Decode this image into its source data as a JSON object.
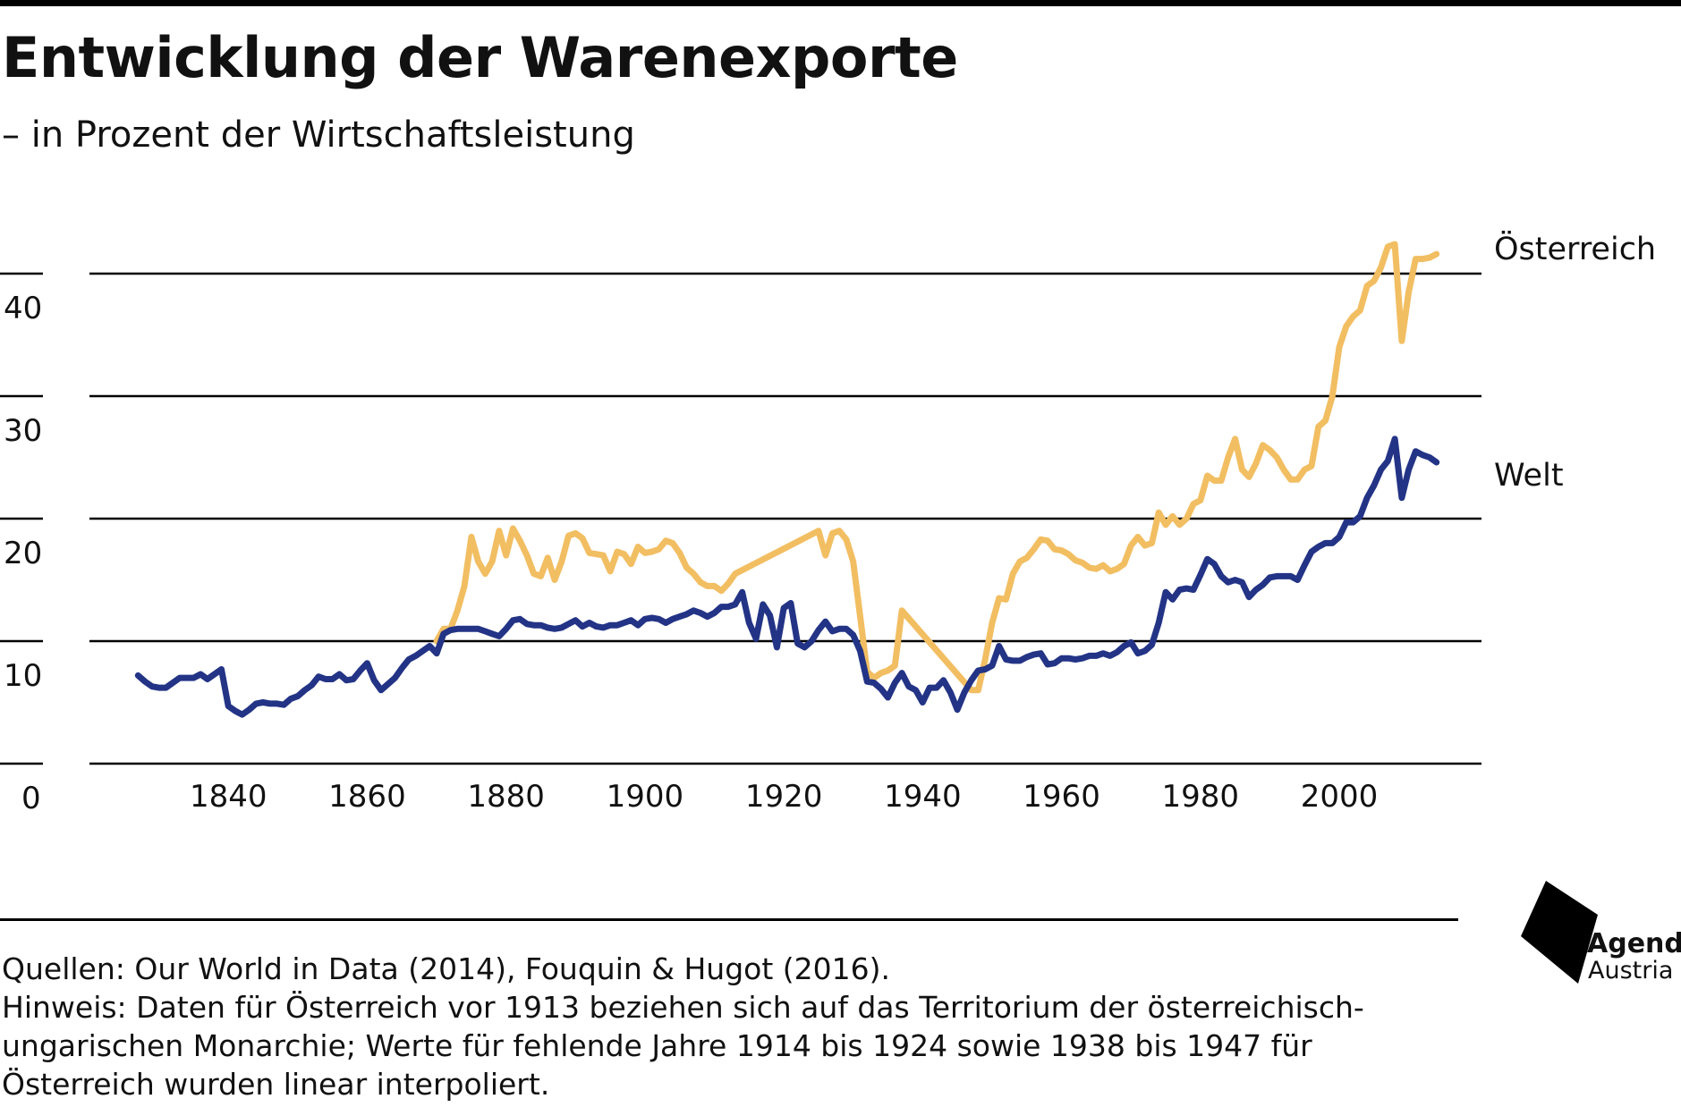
{
  "title": "Entwicklung der Warenexporte",
  "subtitle": "– in Prozent der Wirtschaftsleistung",
  "notes": {
    "sources": "Quellen: Our World in Data (2014), Fouquin & Hugot (2016).",
    "hint": "Hinweis: Daten für Österreich vor 1913 beziehen sich auf das Territorium der österreichisch-\nungarischen Monarchie; Werte für fehlende Jahre 1914 bis 1924 sowie 1938 bis 1947 für\nÖsterreich wurden linear interpoliert."
  },
  "logo": {
    "line1": "Agenda",
    "line2": "Austria"
  },
  "chart_data": {
    "type": "line",
    "ylim": [
      0,
      40
    ],
    "y_ticks": [
      0,
      10,
      20,
      30,
      40
    ],
    "x_range": [
      1820,
      2021
    ],
    "x_ticks": [
      1840,
      1860,
      1880,
      1900,
      1920,
      1940,
      1960,
      1980,
      2000
    ],
    "grid": true,
    "series": [
      {
        "name": "Österreich",
        "color": "#f2be62",
        "points": [
          [
            1870,
            10
          ],
          [
            1871,
            11
          ],
          [
            1872,
            11
          ],
          [
            1873,
            12.5
          ],
          [
            1874,
            14.5
          ],
          [
            1875,
            18.5
          ],
          [
            1876,
            16.5
          ],
          [
            1877,
            15.5
          ],
          [
            1878,
            16.5
          ],
          [
            1879,
            19
          ],
          [
            1880,
            17
          ],
          [
            1881,
            19.2
          ],
          [
            1882,
            18.2
          ],
          [
            1883,
            17
          ],
          [
            1884,
            15.5
          ],
          [
            1885,
            15.3
          ],
          [
            1886,
            16.8
          ],
          [
            1887,
            15
          ],
          [
            1888,
            16.5
          ],
          [
            1889,
            18.6
          ],
          [
            1890,
            18.8
          ],
          [
            1891,
            18.4
          ],
          [
            1892,
            17.2
          ],
          [
            1893,
            17.1
          ],
          [
            1894,
            17
          ],
          [
            1895,
            15.7
          ],
          [
            1896,
            17.3
          ],
          [
            1897,
            17.1
          ],
          [
            1898,
            16.3
          ],
          [
            1899,
            17.7
          ],
          [
            1900,
            17.2
          ],
          [
            1901,
            17.3
          ],
          [
            1902,
            17.5
          ],
          [
            1903,
            18.2
          ],
          [
            1904,
            18
          ],
          [
            1905,
            17.2
          ],
          [
            1906,
            16
          ],
          [
            1907,
            15.5
          ],
          [
            1908,
            14.8
          ],
          [
            1909,
            14.5
          ],
          [
            1910,
            14.5
          ],
          [
            1911,
            14.1
          ],
          [
            1912,
            14.7
          ],
          [
            1913,
            15.5
          ],
          [
            1925,
            19
          ],
          [
            1926,
            17
          ],
          [
            1927,
            18.8
          ],
          [
            1928,
            19
          ],
          [
            1929,
            18.3
          ],
          [
            1930,
            16.5
          ],
          [
            1931,
            12
          ],
          [
            1932,
            7.5
          ],
          [
            1933,
            7
          ],
          [
            1934,
            7.4
          ],
          [
            1935,
            7.6
          ],
          [
            1936,
            8
          ],
          [
            1937,
            12.5
          ],
          [
            1947,
            6
          ],
          [
            1948,
            6
          ],
          [
            1949,
            8.5
          ],
          [
            1950,
            11.5
          ],
          [
            1951,
            13.5
          ],
          [
            1952,
            13.4
          ],
          [
            1953,
            15.5
          ],
          [
            1954,
            16.5
          ],
          [
            1955,
            16.8
          ],
          [
            1956,
            17.5
          ],
          [
            1957,
            18.3
          ],
          [
            1958,
            18.2
          ],
          [
            1959,
            17.5
          ],
          [
            1960,
            17.4
          ],
          [
            1961,
            17.1
          ],
          [
            1962,
            16.6
          ],
          [
            1963,
            16.4
          ],
          [
            1964,
            16
          ],
          [
            1965,
            15.9
          ],
          [
            1966,
            16.2
          ],
          [
            1967,
            15.7
          ],
          [
            1968,
            15.9
          ],
          [
            1969,
            16.3
          ],
          [
            1970,
            17.8
          ],
          [
            1971,
            18.5
          ],
          [
            1972,
            17.8
          ],
          [
            1973,
            18
          ],
          [
            1974,
            20.5
          ],
          [
            1975,
            19.5
          ],
          [
            1976,
            20.2
          ],
          [
            1977,
            19.5
          ],
          [
            1978,
            20
          ],
          [
            1979,
            21.2
          ],
          [
            1980,
            21.5
          ],
          [
            1981,
            23.5
          ],
          [
            1982,
            23.1
          ],
          [
            1983,
            23.1
          ],
          [
            1984,
            25
          ],
          [
            1985,
            26.5
          ],
          [
            1986,
            24
          ],
          [
            1987,
            23.4
          ],
          [
            1988,
            24.5
          ],
          [
            1989,
            26
          ],
          [
            1990,
            25.6
          ],
          [
            1991,
            25
          ],
          [
            1992,
            24
          ],
          [
            1993,
            23.2
          ],
          [
            1994,
            23.2
          ],
          [
            1995,
            24
          ],
          [
            1996,
            24.3
          ],
          [
            1997,
            27.5
          ],
          [
            1998,
            28
          ],
          [
            1999,
            30
          ],
          [
            2000,
            34
          ],
          [
            2001,
            35.7
          ],
          [
            2002,
            36.5
          ],
          [
            2003,
            37
          ],
          [
            2004,
            39
          ],
          [
            2005,
            39.4
          ],
          [
            2006,
            40.5
          ],
          [
            2007,
            42.2
          ],
          [
            2008,
            42.4
          ],
          [
            2009,
            34.5
          ],
          [
            2010,
            38.5
          ],
          [
            2011,
            41.2
          ],
          [
            2012,
            41.2
          ],
          [
            2013,
            41.3
          ],
          [
            2014,
            41.6
          ]
        ]
      },
      {
        "name": "Welt",
        "color": "#233486",
        "points": [
          [
            1827,
            7.2
          ],
          [
            1828,
            6.7
          ],
          [
            1829,
            6.3
          ],
          [
            1830,
            6.2
          ],
          [
            1831,
            6.2
          ],
          [
            1832,
            6.6
          ],
          [
            1833,
            7
          ],
          [
            1834,
            7
          ],
          [
            1835,
            7
          ],
          [
            1836,
            7.3
          ],
          [
            1837,
            6.9
          ],
          [
            1838,
            7.3
          ],
          [
            1839,
            7.7
          ],
          [
            1840,
            4.7
          ],
          [
            1841,
            4.3
          ],
          [
            1842,
            4
          ],
          [
            1843,
            4.4
          ],
          [
            1844,
            4.9
          ],
          [
            1845,
            5
          ],
          [
            1846,
            4.9
          ],
          [
            1847,
            4.9
          ],
          [
            1848,
            4.8
          ],
          [
            1849,
            5.3
          ],
          [
            1850,
            5.5
          ],
          [
            1851,
            6
          ],
          [
            1852,
            6.4
          ],
          [
            1853,
            7.1
          ],
          [
            1854,
            6.9
          ],
          [
            1855,
            6.9
          ],
          [
            1856,
            7.3
          ],
          [
            1857,
            6.8
          ],
          [
            1858,
            6.9
          ],
          [
            1859,
            7.6
          ],
          [
            1860,
            8.2
          ],
          [
            1861,
            6.8
          ],
          [
            1862,
            6
          ],
          [
            1863,
            6.5
          ],
          [
            1864,
            7
          ],
          [
            1865,
            7.8
          ],
          [
            1866,
            8.5
          ],
          [
            1867,
            8.8
          ],
          [
            1868,
            9.2
          ],
          [
            1869,
            9.6
          ],
          [
            1870,
            9
          ],
          [
            1871,
            10.6
          ],
          [
            1872,
            10.9
          ],
          [
            1873,
            11
          ],
          [
            1874,
            11
          ],
          [
            1875,
            11
          ],
          [
            1876,
            11
          ],
          [
            1877,
            10.8
          ],
          [
            1878,
            10.6
          ],
          [
            1879,
            10.4
          ],
          [
            1880,
            11
          ],
          [
            1881,
            11.7
          ],
          [
            1882,
            11.8
          ],
          [
            1883,
            11.4
          ],
          [
            1884,
            11.3
          ],
          [
            1885,
            11.3
          ],
          [
            1886,
            11.1
          ],
          [
            1887,
            11
          ],
          [
            1888,
            11.1
          ],
          [
            1889,
            11.4
          ],
          [
            1890,
            11.7
          ],
          [
            1891,
            11.2
          ],
          [
            1892,
            11.5
          ],
          [
            1893,
            11.2
          ],
          [
            1894,
            11.1
          ],
          [
            1895,
            11.3
          ],
          [
            1896,
            11.3
          ],
          [
            1897,
            11.5
          ],
          [
            1898,
            11.7
          ],
          [
            1899,
            11.3
          ],
          [
            1900,
            11.8
          ],
          [
            1901,
            11.9
          ],
          [
            1902,
            11.8
          ],
          [
            1903,
            11.5
          ],
          [
            1904,
            11.8
          ],
          [
            1905,
            12
          ],
          [
            1906,
            12.2
          ],
          [
            1907,
            12.5
          ],
          [
            1908,
            12.3
          ],
          [
            1909,
            12
          ],
          [
            1910,
            12.3
          ],
          [
            1911,
            12.8
          ],
          [
            1912,
            12.8
          ],
          [
            1913,
            13
          ],
          [
            1914,
            14
          ],
          [
            1915,
            11.5
          ],
          [
            1916,
            10.2
          ],
          [
            1917,
            13
          ],
          [
            1918,
            12.1
          ],
          [
            1919,
            9.5
          ],
          [
            1920,
            12.7
          ],
          [
            1921,
            13.1
          ],
          [
            1922,
            9.8
          ],
          [
            1923,
            9.5
          ],
          [
            1924,
            10
          ],
          [
            1925,
            10.9
          ],
          [
            1926,
            11.6
          ],
          [
            1927,
            10.8
          ],
          [
            1928,
            11
          ],
          [
            1929,
            11
          ],
          [
            1930,
            10.5
          ],
          [
            1931,
            9.2
          ],
          [
            1932,
            6.7
          ],
          [
            1933,
            6.6
          ],
          [
            1934,
            6.1
          ],
          [
            1935,
            5.4
          ],
          [
            1936,
            6.6
          ],
          [
            1937,
            7.4
          ],
          [
            1938,
            6.3
          ],
          [
            1939,
            6
          ],
          [
            1940,
            5
          ],
          [
            1941,
            6.2
          ],
          [
            1942,
            6.2
          ],
          [
            1943,
            6.8
          ],
          [
            1944,
            5.8
          ],
          [
            1945,
            4.4
          ],
          [
            1946,
            5.8
          ],
          [
            1947,
            6.8
          ],
          [
            1948,
            7.6
          ],
          [
            1949,
            7.7
          ],
          [
            1950,
            8
          ],
          [
            1951,
            9.6
          ],
          [
            1952,
            8.5
          ],
          [
            1953,
            8.4
          ],
          [
            1954,
            8.4
          ],
          [
            1955,
            8.7
          ],
          [
            1956,
            8.9
          ],
          [
            1957,
            9
          ],
          [
            1958,
            8.1
          ],
          [
            1959,
            8.2
          ],
          [
            1960,
            8.6
          ],
          [
            1961,
            8.6
          ],
          [
            1962,
            8.5
          ],
          [
            1963,
            8.6
          ],
          [
            1964,
            8.8
          ],
          [
            1965,
            8.8
          ],
          [
            1966,
            9
          ],
          [
            1967,
            8.8
          ],
          [
            1968,
            9.1
          ],
          [
            1969,
            9.6
          ],
          [
            1970,
            9.9
          ],
          [
            1971,
            9
          ],
          [
            1972,
            9.2
          ],
          [
            1973,
            9.7
          ],
          [
            1974,
            11.5
          ],
          [
            1975,
            14
          ],
          [
            1976,
            13.4
          ],
          [
            1977,
            14.2
          ],
          [
            1978,
            14.3
          ],
          [
            1979,
            14.2
          ],
          [
            1980,
            15.4
          ],
          [
            1981,
            16.7
          ],
          [
            1982,
            16.3
          ],
          [
            1983,
            15.3
          ],
          [
            1984,
            14.8
          ],
          [
            1985,
            15
          ],
          [
            1986,
            14.8
          ],
          [
            1987,
            13.6
          ],
          [
            1988,
            14.2
          ],
          [
            1989,
            14.6
          ],
          [
            1990,
            15.2
          ],
          [
            1991,
            15.3
          ],
          [
            1992,
            15.3
          ],
          [
            1993,
            15.3
          ],
          [
            1994,
            15
          ],
          [
            1995,
            16.2
          ],
          [
            1996,
            17.3
          ],
          [
            1997,
            17.7
          ],
          [
            1998,
            18
          ],
          [
            1999,
            18
          ],
          [
            2000,
            18.5
          ],
          [
            2001,
            19.7
          ],
          [
            2002,
            19.7
          ],
          [
            2003,
            20.2
          ],
          [
            2004,
            21.7
          ],
          [
            2005,
            22.7
          ],
          [
            2006,
            24
          ],
          [
            2007,
            24.7
          ],
          [
            2008,
            26.5
          ],
          [
            2009,
            21.7
          ],
          [
            2010,
            24
          ],
          [
            2011,
            25.5
          ],
          [
            2012,
            25.2
          ],
          [
            2013,
            25
          ],
          [
            2014,
            24.6
          ]
        ]
      }
    ]
  }
}
